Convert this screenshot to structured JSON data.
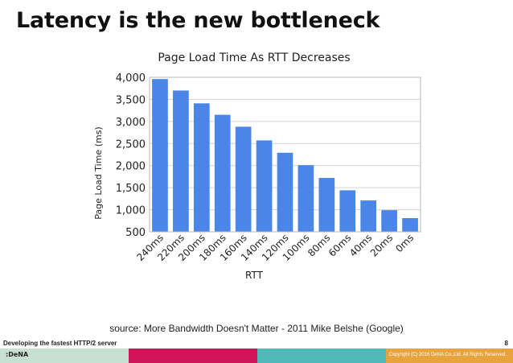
{
  "slide": {
    "title": "Latency is the new bottleneck",
    "source": "source: More Bandwidth Doesn't Matter - 2011 Mike Belshe (Google)",
    "footer_title": "Developing the fastest HTTP/2 server",
    "page_number": "8",
    "logo_text": ":DeNA",
    "copyright": "Copyright (C) 2016 DeNA Co.,Ltd. All Rights Reserved.",
    "footer_colors": [
      "#c8e0d2",
      "#d0145a",
      "#50b8b8",
      "#e8a43c"
    ]
  },
  "chart_data": {
    "type": "bar",
    "title": "Page Load Time As RTT Decreases",
    "xlabel": "RTT",
    "ylabel": "Page Load Time (ms)",
    "ylim": [
      500,
      4000
    ],
    "yticks": [
      500,
      1000,
      1500,
      2000,
      2500,
      3000,
      3500,
      4000
    ],
    "ytick_labels": [
      "500",
      "1,000",
      "1,500",
      "2,000",
      "2,500",
      "3,000",
      "3,500",
      "4,000"
    ],
    "grid": true,
    "bar_color": "#4a86e8",
    "categories": [
      "240ms",
      "220ms",
      "200ms",
      "180ms",
      "160ms",
      "140ms",
      "120ms",
      "100ms",
      "80ms",
      "60ms",
      "40ms",
      "20ms",
      "0ms"
    ],
    "values": [
      3960,
      3700,
      3410,
      3150,
      2880,
      2570,
      2290,
      2010,
      1720,
      1440,
      1210,
      990,
      810
    ]
  }
}
